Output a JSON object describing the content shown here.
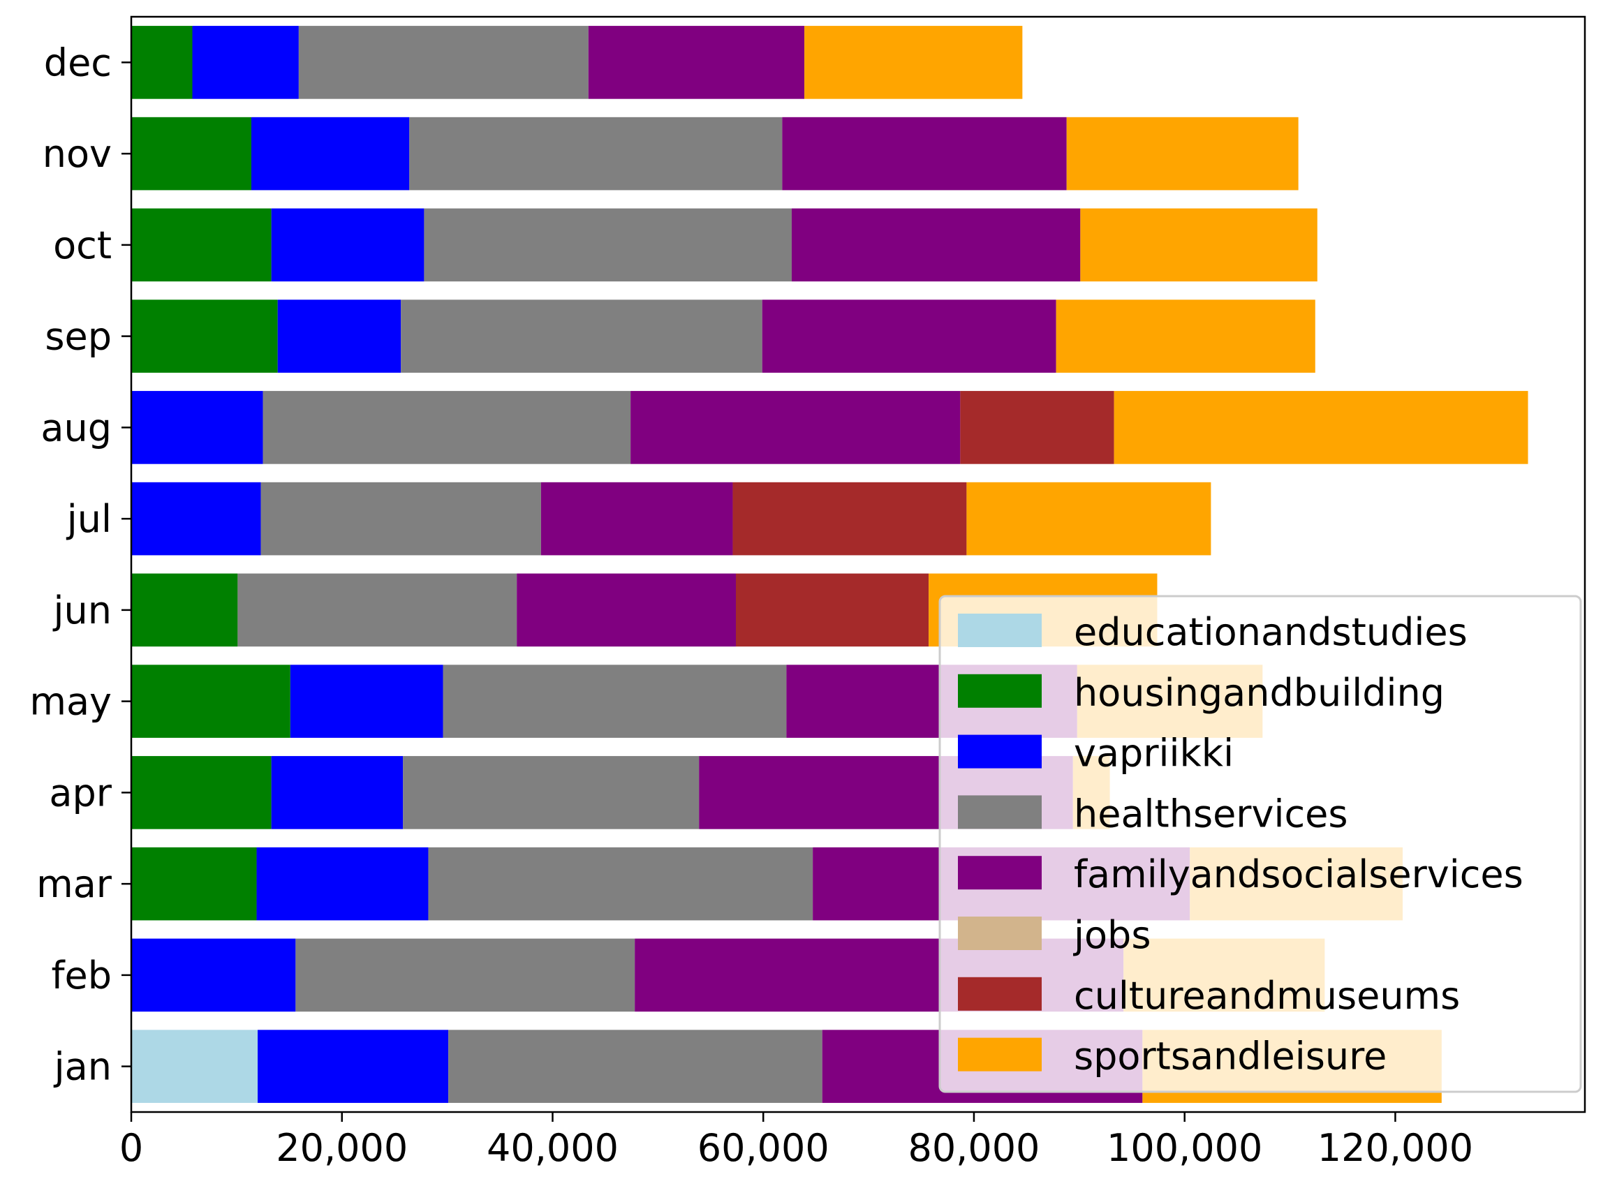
{
  "chart_data": {
    "type": "bar",
    "orientation": "horizontal",
    "stacked": true,
    "title": "",
    "xlabel": "",
    "ylabel": "",
    "xlim": [
      0,
      138000
    ],
    "x_ticks": [
      0,
      20000,
      40000,
      60000,
      80000,
      100000,
      120000
    ],
    "x_tick_labels": [
      "0",
      "20,000",
      "40,000",
      "60,000",
      "80,000",
      "100,000",
      "120,000"
    ],
    "categories": [
      "jan",
      "feb",
      "mar",
      "apr",
      "may",
      "jun",
      "jul",
      "aug",
      "sep",
      "oct",
      "nov",
      "dec"
    ],
    "grid": false,
    "legend_position": "lower-right",
    "series": [
      {
        "name": "educationandstudies",
        "color": "#add8e6",
        "values": [
          12000,
          0,
          0,
          0,
          0,
          0,
          0,
          0,
          0,
          0,
          0,
          0
        ]
      },
      {
        "name": "housingandbuilding",
        "color": "#008000",
        "values": [
          0,
          0,
          11900,
          13300,
          15100,
          10100,
          0,
          0,
          13900,
          13300,
          11400,
          5800
        ]
      },
      {
        "name": "vapriikki",
        "color": "#0000ff",
        "values": [
          18100,
          15600,
          16300,
          12500,
          14500,
          0,
          12300,
          12500,
          11700,
          14500,
          15000,
          10100
        ]
      },
      {
        "name": "healthservices",
        "color": "#808080",
        "values": [
          35500,
          32200,
          36500,
          28100,
          32600,
          26500,
          26600,
          34900,
          34300,
          34900,
          35400,
          27500
        ]
      },
      {
        "name": "familyandsocialservices",
        "color": "#800080",
        "values": [
          30400,
          46400,
          35800,
          35500,
          27600,
          20800,
          18200,
          31300,
          27900,
          27400,
          27000,
          20500
        ]
      },
      {
        "name": "jobs",
        "color": "#d2b48c",
        "values": [
          0,
          0,
          0,
          0,
          0,
          0,
          0,
          0,
          0,
          0,
          0,
          0
        ]
      },
      {
        "name": "cultureandmuseums",
        "color": "#a52a2a",
        "values": [
          0,
          0,
          0,
          0,
          0,
          18300,
          22200,
          14600,
          0,
          0,
          0,
          0
        ]
      },
      {
        "name": "sportsandleisure",
        "color": "#ffa500",
        "values": [
          28400,
          19100,
          20200,
          3500,
          17600,
          21700,
          23200,
          39300,
          24600,
          22500,
          22000,
          20700
        ]
      }
    ]
  }
}
